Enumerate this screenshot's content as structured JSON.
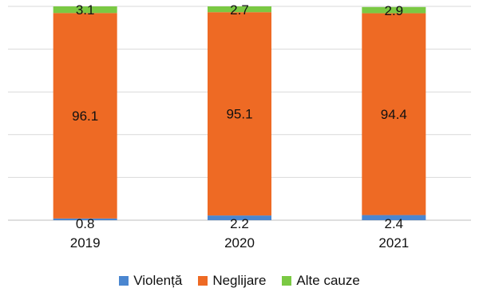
{
  "chart_data": {
    "type": "bar",
    "stacked": true,
    "categories": [
      "2019",
      "2020",
      "2021"
    ],
    "series": [
      {
        "name": "Violență",
        "color": "#4a86d0",
        "values": [
          0.8,
          2.2,
          2.4
        ]
      },
      {
        "name": "Neglijare",
        "color": "#ee6a24",
        "values": [
          96.1,
          95.1,
          94.4
        ]
      },
      {
        "name": "Alte cauze",
        "color": "#7ac943",
        "values": [
          3.1,
          2.7,
          2.9
        ]
      }
    ],
    "ylim": [
      0,
      100
    ],
    "grid": true,
    "legend": "bottom"
  }
}
